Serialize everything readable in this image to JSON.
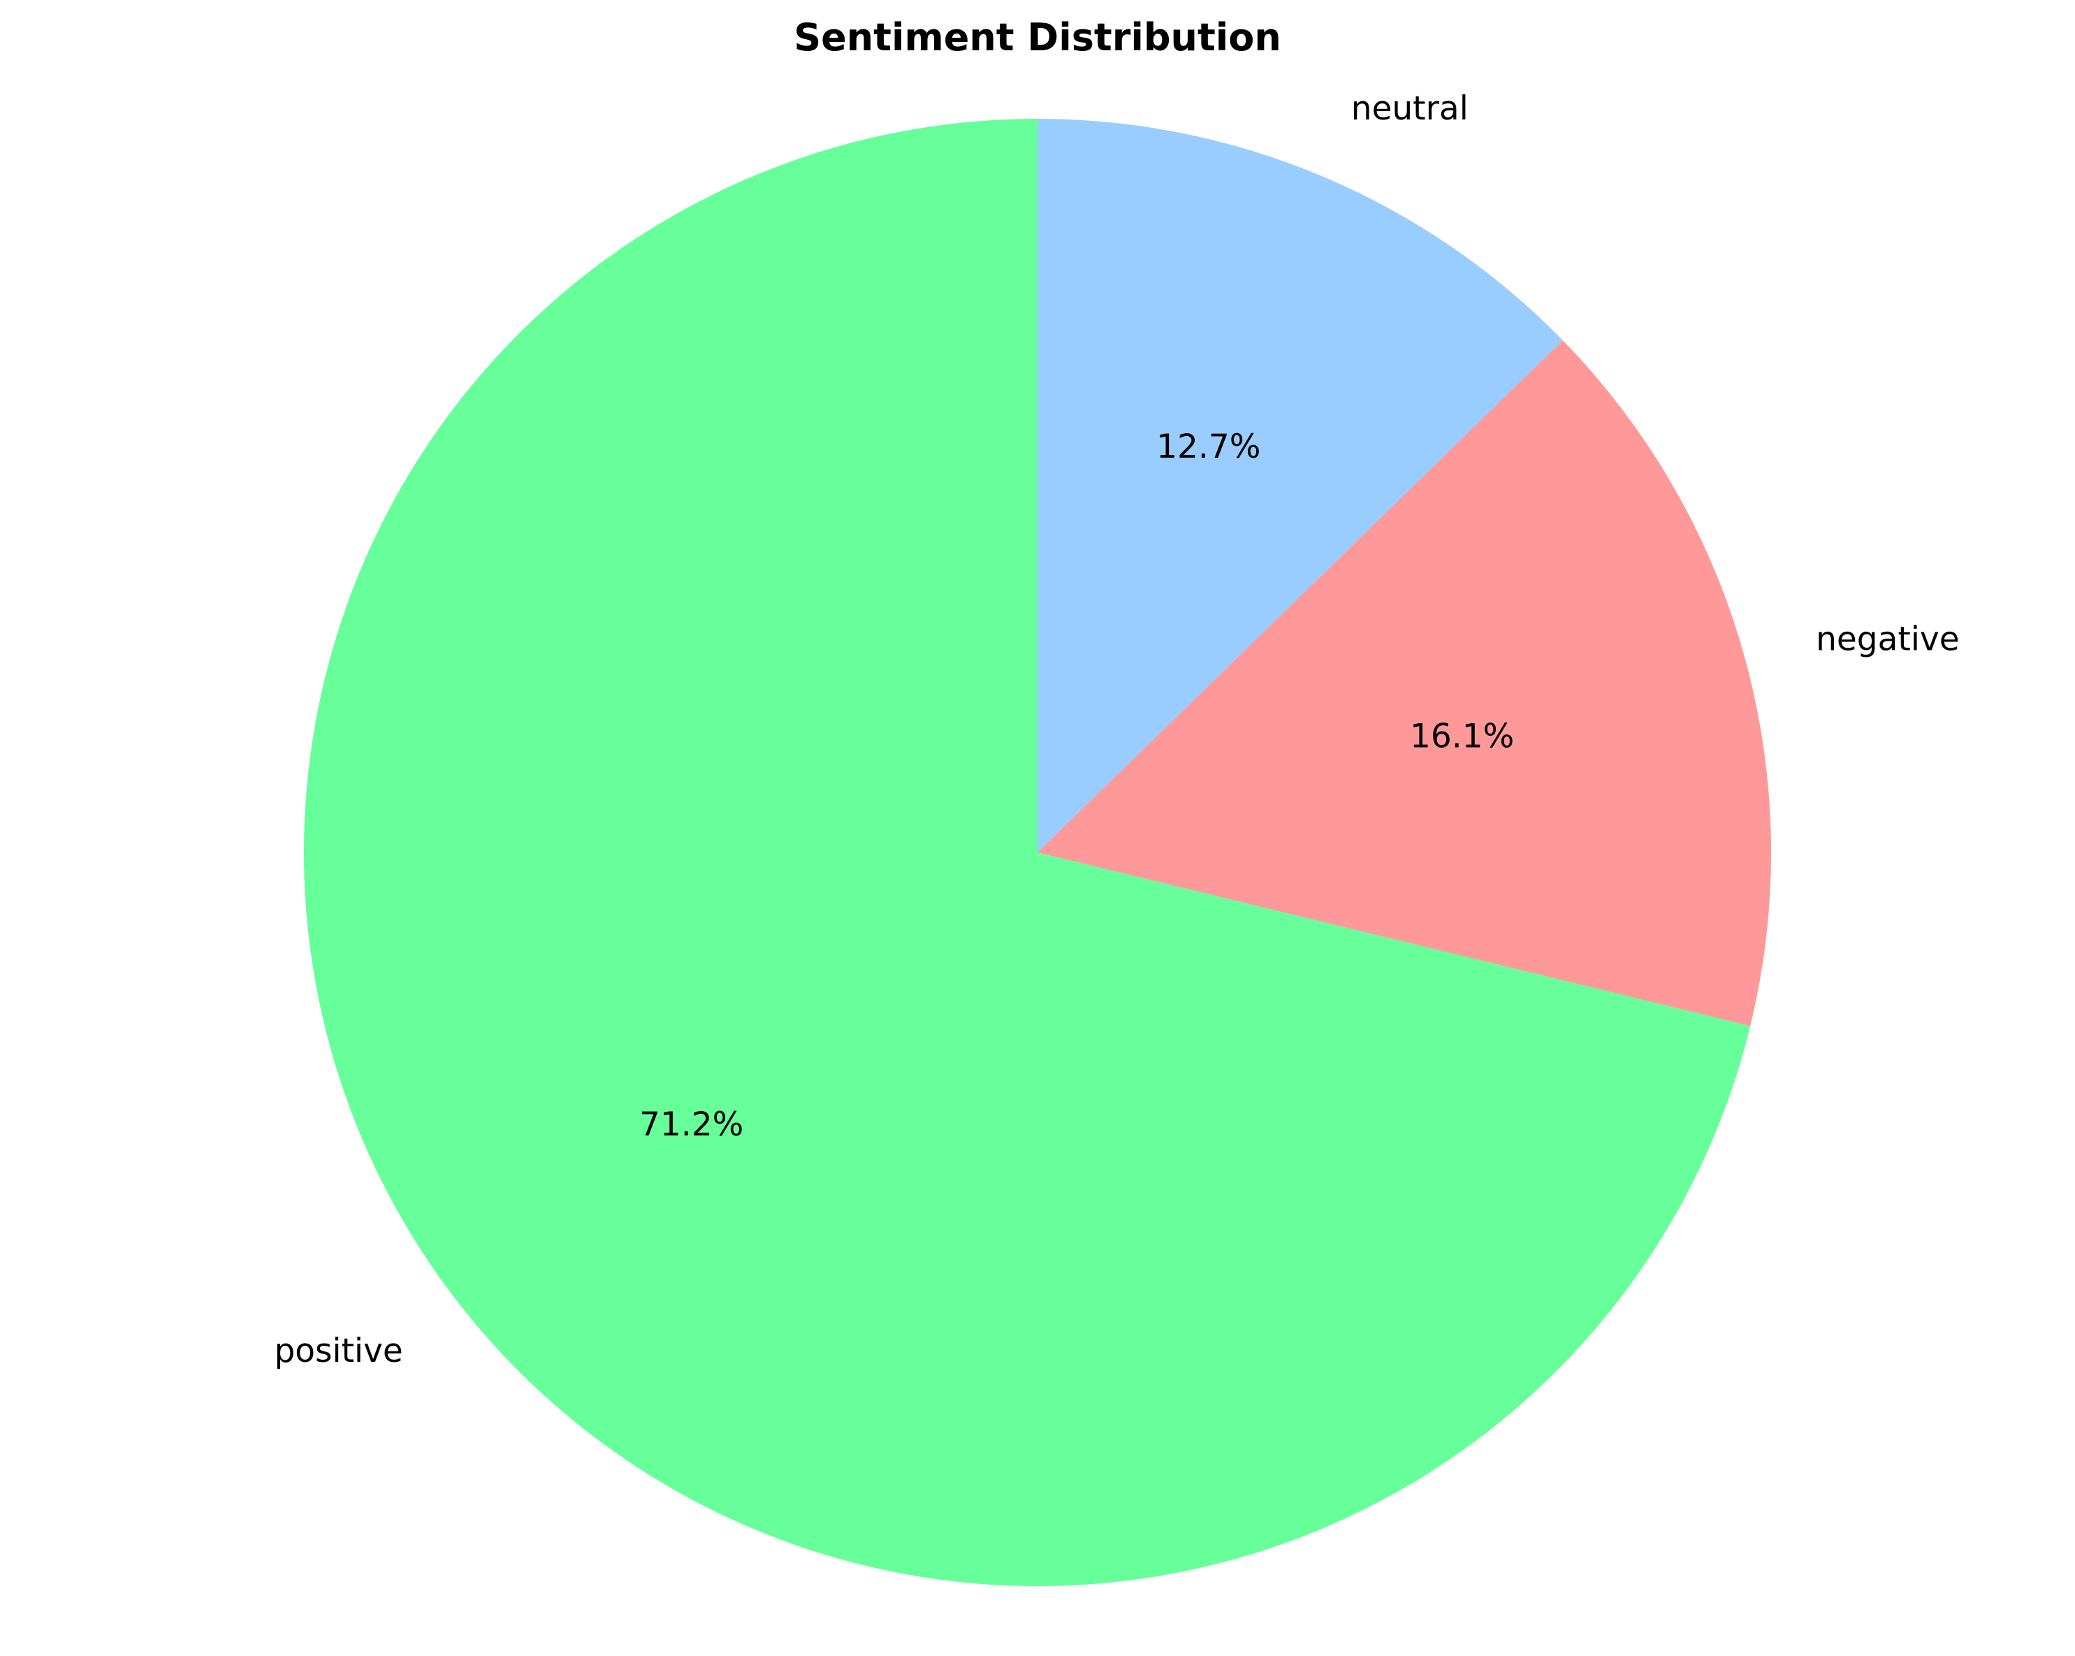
{
  "chart_data": {
    "type": "pie",
    "title": "Sentiment Distribution",
    "start_angle_deg": 90,
    "direction": "clockwise",
    "slices": [
      {
        "key": "neutral",
        "label": "neutral",
        "value": 12.7,
        "pct_label": "12.7%",
        "color": "#99ccff"
      },
      {
        "key": "negative",
        "label": "negative",
        "value": 16.1,
        "pct_label": "16.1%",
        "color": "#ff9999"
      },
      {
        "key": "positive",
        "label": "positive",
        "value": 71.2,
        "pct_label": "71.2%",
        "color": "#66ff99"
      }
    ]
  }
}
